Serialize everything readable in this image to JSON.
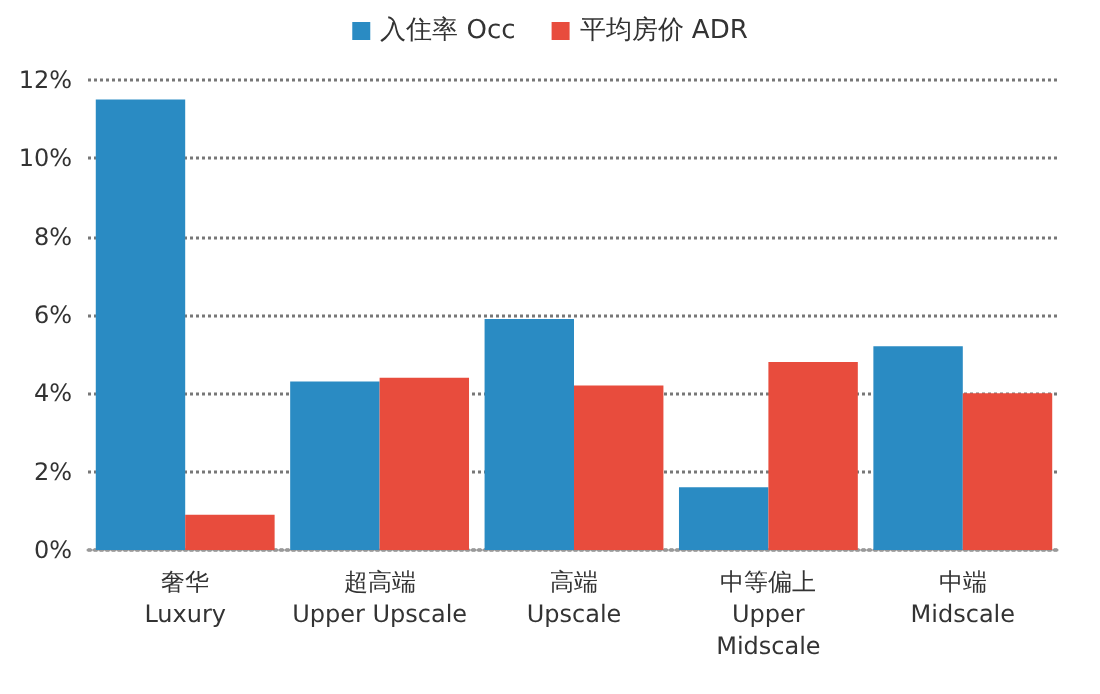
{
  "chart_data": {
    "type": "bar",
    "categories": [
      "奢华\nLuxury",
      "超高端\nUpper Upscale",
      "高端\nUpscale",
      "中等偏上\nUpper\nMidscale",
      "中端\nMidscale"
    ],
    "series": [
      {
        "name": "入住率 Occ",
        "color": "#2a8bc3",
        "values": [
          11.5,
          4.3,
          5.9,
          1.6,
          5.2
        ]
      },
      {
        "name": "平均房价 ADR",
        "color": "#e84c3d",
        "values": [
          0.9,
          4.4,
          4.2,
          4.8,
          4.0
        ]
      }
    ],
    "ylim": [
      0,
      12
    ],
    "yticks": [
      {
        "value": 0,
        "label": "0%"
      },
      {
        "value": 2,
        "label": "2%"
      },
      {
        "value": 4,
        "label": "4%"
      },
      {
        "value": 6,
        "label": "6%"
      },
      {
        "value": 8,
        "label": "8%"
      },
      {
        "value": 10,
        "label": "10%"
      },
      {
        "value": 12,
        "label": "12%"
      }
    ],
    "grid": "y",
    "legend": "top"
  }
}
